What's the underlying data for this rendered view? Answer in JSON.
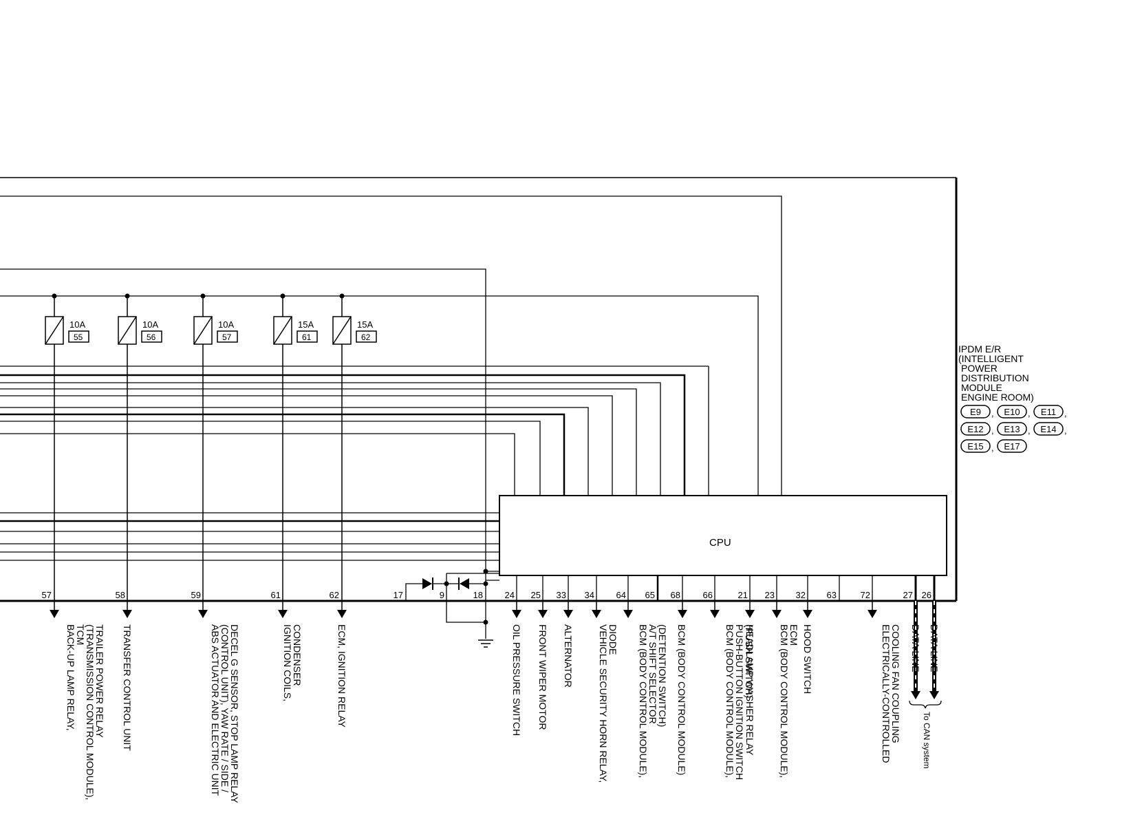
{
  "module": {
    "title_lines": [
      "IPDM E/R",
      "(INTELLIGENT",
      "POWER",
      "DISTRIBUTION",
      "MODULE",
      "ENGINE ROOM)"
    ],
    "connectors": [
      "E9",
      "E10",
      "E11",
      "E12",
      "E13",
      "E14",
      "E15",
      "E17"
    ],
    "cpu_label": "CPU"
  },
  "fuses": [
    {
      "amp": "10A",
      "num": "55"
    },
    {
      "amp": "10A",
      "num": "56"
    },
    {
      "amp": "10A",
      "num": "57"
    },
    {
      "amp": "15A",
      "num": "61"
    },
    {
      "amp": "15A",
      "num": "62"
    }
  ],
  "terminals": [
    {
      "pin": "57",
      "lines": [
        "BACK-UP LAMP RELAY,",
        "TCM",
        "(TRANSMISSION CONTROL MODULE),",
        "TRAILER POWER RELAY"
      ]
    },
    {
      "pin": "58",
      "lines": [
        "TRANSFER CONTROL UNIT"
      ]
    },
    {
      "pin": "59",
      "lines": [
        "ABS ACTUATOR AND ELECTRIC UNIT",
        "(CONTROL UNIT), YAW RATE / SIDE /",
        "DECEL G SENSOR, STOP LAMP RELAY"
      ]
    },
    {
      "pin": "61",
      "lines": [
        "IGNITION COILS,",
        "CONDENSER"
      ]
    },
    {
      "pin": "62",
      "lines": [
        "ECM, IGNITION RELAY"
      ]
    },
    {
      "pin": "17",
      "lines": []
    },
    {
      "pin": "9",
      "lines": []
    },
    {
      "pin": "18",
      "lines": []
    },
    {
      "pin": "24",
      "lines": [
        "OIL PRESSURE SWITCH"
      ]
    },
    {
      "pin": "25",
      "lines": [
        "FRONT WIPER MOTOR"
      ]
    },
    {
      "pin": "33",
      "lines": [
        "ALTERNATOR"
      ]
    },
    {
      "pin": "34",
      "lines": [
        "VEHICLE SECURITY HORN RELAY,",
        "DIODE"
      ]
    },
    {
      "pin": "64",
      "lines": [
        "BCM (BODY CONTROL MODULE),",
        "A/T SHIFT SELECTOR",
        "(DETENTION SWITCH)"
      ]
    },
    {
      "pin": "65",
      "lines": []
    },
    {
      "pin": "68",
      "lines": [
        "BCM (BODY CONTROL MODULE)"
      ]
    },
    {
      "pin": "66",
      "lines": [
        "BCM (BODY CONTROL MODULE),",
        "PUSH-BUTTON IGNITION SWITCH",
        "(PUSH SWITCH)"
      ]
    },
    {
      "pin": "21",
      "lines": [
        "HEADLAMP WASHER RELAY"
      ]
    },
    {
      "pin": "23",
      "lines": [
        "BCM (BODY CONTROL MODULE),",
        "ECM"
      ]
    },
    {
      "pin": "32",
      "lines": [
        "HOOD SWITCH"
      ]
    },
    {
      "pin": "63",
      "lines": []
    },
    {
      "pin": "72",
      "lines": [
        "ELECTRICALLY-CONTROLLED",
        "COOLING FAN COUPLING"
      ]
    },
    {
      "pin": "27",
      "lines": [
        "DATA LINE"
      ]
    },
    {
      "pin": "26",
      "lines": [
        "DATA LINE"
      ]
    }
  ],
  "can_note": "To CAN system"
}
